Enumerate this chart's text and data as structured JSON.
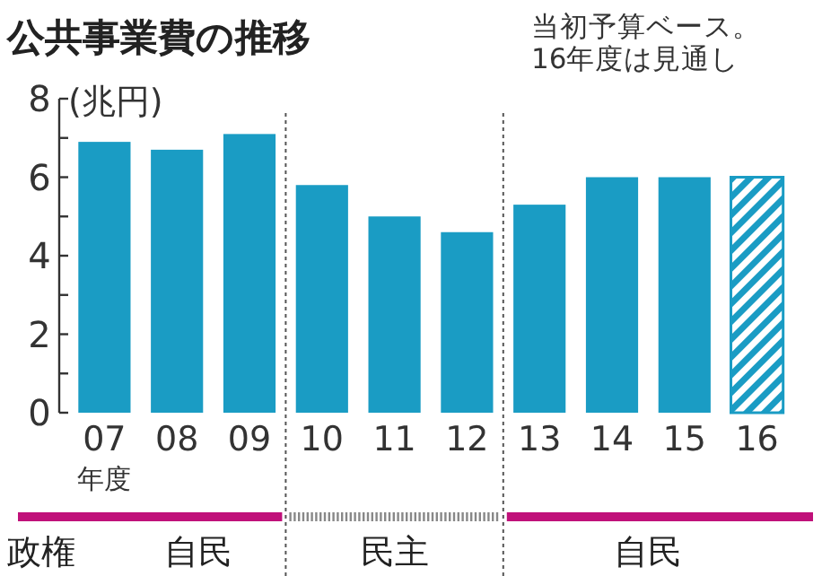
{
  "chart_data": {
    "type": "bar",
    "title": "公共事業費の推移",
    "subtitle": "当初予算ベース。\n16年度は見通し",
    "ylabel": "(兆円)",
    "xlabel": "年度",
    "categories": [
      "07",
      "08",
      "09",
      "10",
      "11",
      "12",
      "13",
      "14",
      "15",
      "16"
    ],
    "series": [
      {
        "color": "#1a9cc4",
        "values": [
          6.9,
          6.7,
          7.1,
          5.8,
          5.0,
          4.6,
          5.3,
          6.0,
          6.0,
          null
        ]
      },
      {
        "color": "#1a9cc4",
        "values": [
          null,
          null,
          null,
          null,
          null,
          null,
          null,
          null,
          null,
          6.0
        ]
      }
    ],
    "ylim": [
      0,
      8
    ],
    "yticks": [
      0,
      {
        "value": 1,
        "label": null
      },
      2,
      {
        "value": 3,
        "label": null
      },
      4,
      {
        "value": 5,
        "label": null
      },
      6,
      {
        "value": 7,
        "label": null
      },
      8
    ],
    "annotations": [
      "政権",
      "自民",
      "民主",
      "自民"
    ]
  }
}
